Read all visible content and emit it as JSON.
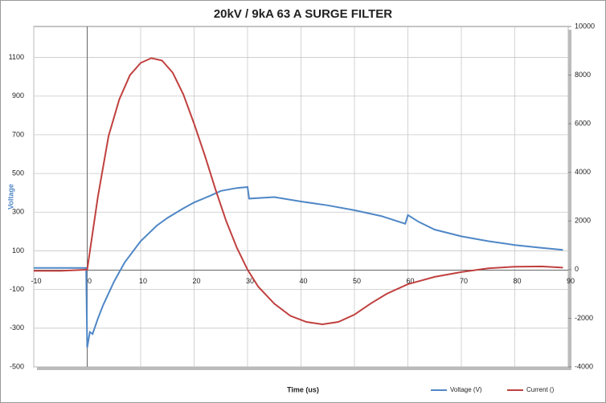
{
  "chart_data": {
    "type": "line",
    "title": "20kV / 9kA 63 A SURGE FILTER",
    "xlabel": "Time (us)",
    "ylabel": "Voltage",
    "xlim": [
      -10,
      90
    ],
    "xticks": [
      -10,
      0,
      10,
      20,
      30,
      40,
      50,
      60,
      70,
      80,
      90
    ],
    "ylim": [
      -500,
      1260
    ],
    "yticks": [
      -500,
      -300,
      -100,
      100,
      300,
      500,
      700,
      900,
      1100
    ],
    "y2lim": [
      -4000,
      10000
    ],
    "y2ticks": [
      -4000,
      -2000,
      0,
      2000,
      4000,
      6000,
      8000,
      10000
    ],
    "grid": true,
    "legend": "bottom-right",
    "series": [
      {
        "name": "Voltage (V)",
        "color": "#4f87c6",
        "x": [
          -10,
          -5,
          -0.2,
          0,
          0.5,
          1,
          2,
          3,
          5,
          7,
          10,
          13,
          15,
          18,
          20,
          23,
          25,
          28,
          30,
          30.3,
          35,
          40,
          45,
          50,
          55,
          59.5,
          60,
          62,
          65,
          70,
          75,
          80,
          85,
          89
        ],
        "values": [
          12,
          12,
          12,
          -400,
          -320,
          -330,
          -250,
          -180,
          -60,
          40,
          150,
          230,
          270,
          320,
          350,
          385,
          410,
          425,
          430,
          370,
          378,
          355,
          335,
          310,
          280,
          240,
          285,
          250,
          210,
          175,
          150,
          130,
          115,
          105
        ]
      },
      {
        "name": "Current ()",
        "color": "#c0403f",
        "axis": "y2",
        "x": [
          -10,
          -5,
          0,
          2,
          4,
          6,
          8,
          10,
          12,
          14,
          16,
          18,
          20,
          22,
          24,
          26,
          28,
          30,
          32,
          35,
          38,
          41,
          44,
          47,
          50,
          53,
          56,
          60,
          65,
          70,
          75,
          80,
          85,
          89
        ],
        "values": [
          -50,
          -50,
          0,
          3000,
          5500,
          7000,
          8000,
          8500,
          8700,
          8600,
          8100,
          7200,
          6000,
          4700,
          3300,
          2000,
          900,
          0,
          -700,
          -1400,
          -1900,
          -2150,
          -2250,
          -2150,
          -1850,
          -1400,
          -1000,
          -600,
          -300,
          -100,
          50,
          120,
          130,
          80
        ]
      }
    ]
  }
}
